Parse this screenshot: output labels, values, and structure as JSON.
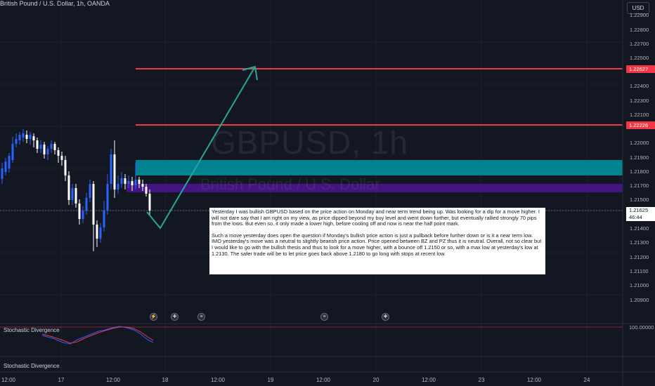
{
  "header": {
    "symbol_title": "British Pound / U.S. Dollar, 1h, OANDA",
    "currency": "USD"
  },
  "watermark": {
    "symbol": "GBPUSD, 1h",
    "name": "British Pound / U.S. Dollar"
  },
  "price_axis": {
    "labels": [
      "1.22900",
      "1.22800",
      "1.22700",
      "1.22500",
      "1.22400",
      "1.22300",
      "1.22100",
      "1.22000",
      "1.21900",
      "1.21800",
      "1.21700",
      "1.21500",
      "1.21400",
      "1.21300",
      "1.21200",
      "1.21100",
      "1.21000",
      "1.20900"
    ],
    "upper_level": "1.22627",
    "lower_level": "1.22226",
    "last_price": "1.21625",
    "countdown": "46:44"
  },
  "time_axis": {
    "labels": [
      "12:00",
      "17",
      "12:00",
      "18",
      "12:00",
      "19",
      "12:00",
      "20",
      "12:00",
      "23",
      "12:00",
      "24"
    ]
  },
  "note": {
    "paragraph1": "Yesterday I was bullish GBPUSD based on the price action on Monday and near term trend being up. Was looking for a dip for a move higher. I will not dare say that I am right on my view, as price dipped beyond my buy level and went down further, but eventually rallied strongly 70 pips from the lows. But even so, it only made a lower high, before cooling off and now is near the half point mark.",
    "paragraph2": "Such a move yesterday does open the question if Monday's bullish price action is just a pullback before further down or is it a near term low. IMO yesterday's move was a neutral to slightly bearish price action. Price opened between BZ and PZ thus it is neutral. Overall, not so clear but I would like to go with the bullish thesis and thus to look for a move higher, with a bounce off 1.2150 or so, with a max low at yesterday's low at 1.2130. The safer trade will be to let price goes back above 1.2180 to go long with stops at recent low."
  },
  "indicators": {
    "pane1_title": "Stochastic Divergence",
    "pane1_max": "100.00000",
    "pane2_title": "Stochastic Divergence"
  },
  "colors": {
    "background": "#131722",
    "bull_candle": "#2962ff",
    "bear_candle": "#ffffff",
    "resistance_line": "#f23645",
    "buy_zone": "#00838f",
    "pivot_zone": "#4a148c",
    "projection_arrow": "#26a69a"
  },
  "events": [
    "lightning-icon",
    "uk-flag-icon",
    "us-flag-icon",
    "us-flag-icon",
    "uk-flag-icon"
  ]
}
